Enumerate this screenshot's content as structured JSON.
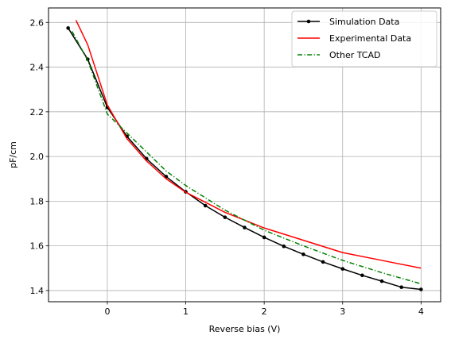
{
  "chart_data": {
    "type": "line",
    "xlabel": "Reverse bias (V)",
    "ylabel": "pF/cm",
    "xlim": [
      -0.75,
      4.25
    ],
    "ylim": [
      1.35,
      2.665
    ],
    "x_ticks": [
      0,
      1,
      2,
      3,
      4
    ],
    "y_ticks": [
      1.4,
      1.6,
      1.8,
      2.0,
      2.2,
      2.4,
      2.6
    ],
    "x_tick_labels": [
      "0",
      "1",
      "2",
      "3",
      "4"
    ],
    "y_tick_labels": [
      "1.4",
      "1.6",
      "1.8",
      "2.0",
      "2.2",
      "2.4",
      "2.6"
    ],
    "grid": true,
    "legend_position": "top-right",
    "series": [
      {
        "name": "Simulation Data",
        "color": "#000000",
        "style": "solid",
        "marker": "dot",
        "x": [
          -0.5,
          -0.25,
          0,
          0.25,
          0.5,
          0.75,
          1.0,
          1.25,
          1.5,
          1.75,
          2.0,
          2.25,
          2.5,
          2.75,
          3.0,
          3.25,
          3.5,
          3.75,
          4.0
        ],
        "y": [
          2.575,
          2.435,
          2.22,
          2.09,
          1.99,
          1.91,
          1.842,
          1.78,
          1.728,
          1.682,
          1.638,
          1.598,
          1.562,
          1.528,
          1.497,
          1.468,
          1.442,
          1.415,
          1.405
        ]
      },
      {
        "name": "Experimental Data",
        "color": "#ff0000",
        "style": "solid",
        "marker": "none",
        "x": [
          -0.4,
          -0.25,
          0,
          0.25,
          0.5,
          0.75,
          1.0,
          1.5,
          2.0,
          2.5,
          3.0,
          3.5,
          4.0
        ],
        "y": [
          2.61,
          2.5,
          2.23,
          2.08,
          1.98,
          1.9,
          1.84,
          1.75,
          1.68,
          1.625,
          1.57,
          1.535,
          1.5
        ]
      },
      {
        "name": "Other TCAD",
        "color": "#008000",
        "style": "dashdot",
        "marker": "none",
        "x": [
          -0.45,
          -0.25,
          0,
          0.25,
          0.5,
          0.75,
          1.0,
          1.5,
          2.0,
          2.5,
          3.0,
          3.5,
          4.0
        ],
        "y": [
          2.56,
          2.43,
          2.19,
          2.105,
          2.02,
          1.935,
          1.87,
          1.76,
          1.67,
          1.6,
          1.535,
          1.48,
          1.43
        ]
      }
    ]
  }
}
